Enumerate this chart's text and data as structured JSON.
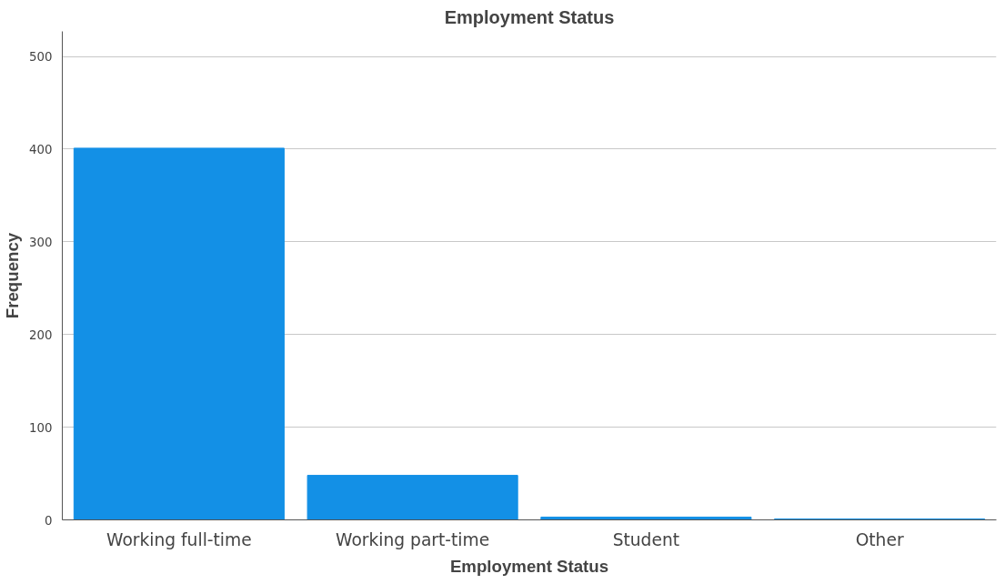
{
  "chart_data": {
    "type": "bar",
    "title": "Employment Status",
    "xlabel": "Employment Status",
    "ylabel": "Frequency",
    "categories": [
      "Working full-time",
      "Working part-time",
      "Student",
      "Other"
    ],
    "values": [
      401,
      48,
      3,
      1
    ],
    "color": "#1390e6",
    "ylim": [
      0,
      527
    ],
    "yticks": [
      0,
      100,
      200,
      300,
      400,
      500
    ],
    "grid": "y"
  }
}
